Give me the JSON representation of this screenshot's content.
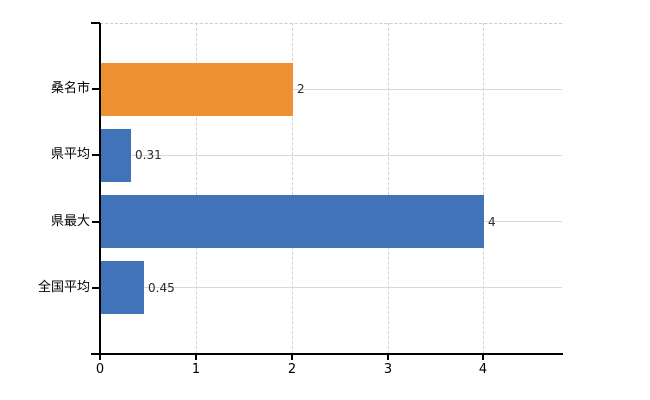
{
  "chart_data": {
    "type": "bar",
    "orientation": "horizontal",
    "title": "",
    "xlabel": "",
    "ylabel": "",
    "categories": [
      "桑名市",
      "県平均",
      "県最大",
      "全国平均"
    ],
    "values": [
      2,
      0.31,
      4,
      0.45
    ],
    "value_labels": [
      "2",
      "0.31",
      "4",
      "0.45"
    ],
    "bar_colors": [
      "#ee9133",
      "#4173b9",
      "#4173b9",
      "#4173b9"
    ],
    "x_tick_labels": [
      "0",
      "1",
      "2",
      "3",
      "4"
    ],
    "x_tick_values": [
      0,
      1,
      2,
      3,
      4
    ],
    "xlim": [
      0,
      4.82
    ],
    "grid": {
      "vertical": "dashed",
      "horizontal": "solid",
      "top_border": "dashed"
    },
    "legend": null,
    "colors": {
      "axis": "#000000",
      "grid_horizontal": "#d8dbd3",
      "grid_vertical": "#d2d2d2",
      "top_border": "#cccccc",
      "value_label_text": "#2b2b2b",
      "category_label_text": "#000000",
      "background": "#ffffff"
    }
  }
}
